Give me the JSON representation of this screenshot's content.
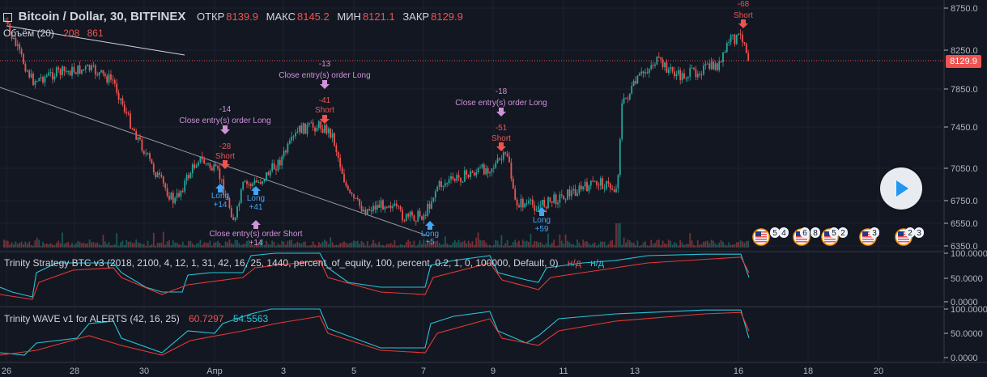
{
  "header": {
    "symbol": "Bitcoin / Dollar, 30, BITFINEX",
    "open_label": "ОТКР",
    "open_value": "8139.9",
    "high_label": "МАКС",
    "high_value": "8145.2",
    "low_label": "МИН",
    "low_value": "8121.1",
    "close_label": "ЗАКР",
    "close_value": "8129.9",
    "volume_label": "Объём (20)",
    "volume_value1": "208",
    "volume_value2": "861"
  },
  "price_axis": {
    "ticks": [
      "8750.0",
      "8250.0",
      "7850.0",
      "7450.0",
      "7050.0",
      "6750.0",
      "6550.0",
      "6350.0"
    ],
    "current_price": "8129.9"
  },
  "time_axis": {
    "labels": [
      "26",
      "28",
      "30",
      "Апр",
      "3",
      "5",
      "7",
      "9",
      "11",
      "13",
      "16",
      "18",
      "20"
    ]
  },
  "strategy_pane": {
    "title": "Trinity Strategy BTC v3 (2018, 2100, 4, 12, 1, 31, 42, 16, 25, 1440, percent_of_equity, 100, percent, 0.2, 1, 0, 100000, Default, 0)",
    "value1": "н/д",
    "value2": "н/д",
    "ticks": [
      "100.0000",
      "50.0000",
      "0.0000"
    ]
  },
  "wave_pane": {
    "title": "Trinity WAVE v1 for ALERTS (42, 16, 25)",
    "value1": "60.7297",
    "value2": "54.5563",
    "ticks": [
      "100.0000",
      "50.0000",
      "0.0000"
    ]
  },
  "trade_labels": [
    {
      "text": "-13",
      "color": "#ce93d8"
    },
    {
      "text": "Close entry(s) order Long",
      "color": "#ce93d8"
    },
    {
      "text": "-41",
      "color": "#ef5350"
    },
    {
      "text": "Short",
      "color": "#ef5350"
    },
    {
      "text": "-14",
      "color": "#ce93d8"
    },
    {
      "text": "Close entry(s) order Long",
      "color": "#ce93d8"
    },
    {
      "text": "-28",
      "color": "#ef5350"
    },
    {
      "text": "Short",
      "color": "#ef5350"
    },
    {
      "text": "-18",
      "color": "#ce93d8"
    },
    {
      "text": "Close entry(s) order Long",
      "color": "#ce93d8"
    },
    {
      "text": "-51",
      "color": "#ef5350"
    },
    {
      "text": "Short",
      "color": "#ef5350"
    },
    {
      "text": "-68",
      "color": "#ef5350"
    },
    {
      "text": "Short",
      "color": "#ef5350"
    },
    {
      "text": "Long",
      "color": "#42a5f5"
    },
    {
      "text": "+14",
      "color": "#42a5f5"
    },
    {
      "text": "Long",
      "color": "#42a5f5"
    },
    {
      "text": "+41",
      "color": "#42a5f5"
    },
    {
      "text": "Close entry(s) order Short",
      "color": "#ce93d8"
    },
    {
      "text": "+14",
      "color": "#ce93d8"
    },
    {
      "text": "Long",
      "color": "#42a5f5"
    },
    {
      "text": "+5",
      "color": "#42a5f5"
    },
    {
      "text": "Long",
      "color": "#42a5f5"
    },
    {
      "text": "+59",
      "color": "#42a5f5"
    }
  ],
  "event_flags": [
    {
      "count": "5"
    },
    {
      "count": "4"
    },
    {
      "count": "6"
    },
    {
      "count": "8"
    },
    {
      "count": "5"
    },
    {
      "count": "2"
    },
    {
      "count": "3"
    },
    {
      "count": "2"
    },
    {
      "count": "3"
    }
  ],
  "colors": {
    "background": "#131722",
    "up": "#26a69a",
    "down": "#ef5350",
    "cyan_line": "#26c6da",
    "red_line": "#e53935",
    "grid": "#1e2230",
    "accent": "#2196f3"
  },
  "icons": {
    "play": "play-icon",
    "collapse": "collapse-icon",
    "flag": "us-flag-icon"
  }
}
